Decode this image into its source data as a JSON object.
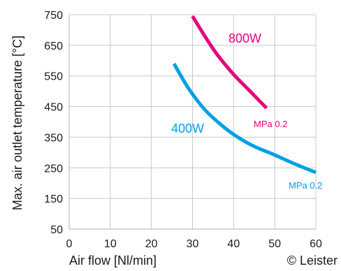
{
  "chart_data": {
    "type": "line",
    "xlabel": "Air flow [Nl/min]",
    "ylabel": "Max. air outlet temperature [°C]",
    "xlim": [
      0,
      60
    ],
    "ylim": [
      50,
      750
    ],
    "x_ticks": [
      "0",
      "10",
      "20",
      "30",
      "40",
      "50",
      "60"
    ],
    "y_ticks": [
      "750",
      "650",
      "550",
      "450",
      "350",
      "250",
      "150",
      "50"
    ],
    "grid": true,
    "series": [
      {
        "name": "800W",
        "note": "MPa 0.2",
        "color": "#e6007e",
        "points": [
          {
            "x": 30,
            "y": 745
          },
          {
            "x": 33,
            "y": 680
          },
          {
            "x": 36,
            "y": 620
          },
          {
            "x": 40,
            "y": 555
          },
          {
            "x": 44,
            "y": 500
          },
          {
            "x": 48,
            "y": 445
          }
        ]
      },
      {
        "name": "400W",
        "note": "MPa 0.2",
        "color": "#00a0e3",
        "points": [
          {
            "x": 25.5,
            "y": 590
          },
          {
            "x": 29,
            "y": 510
          },
          {
            "x": 33,
            "y": 440
          },
          {
            "x": 37,
            "y": 390
          },
          {
            "x": 41,
            "y": 350
          },
          {
            "x": 45,
            "y": 320
          },
          {
            "x": 50,
            "y": 292
          },
          {
            "x": 55,
            "y": 262
          },
          {
            "x": 60,
            "y": 235
          }
        ]
      }
    ]
  },
  "credit": "© Leister"
}
